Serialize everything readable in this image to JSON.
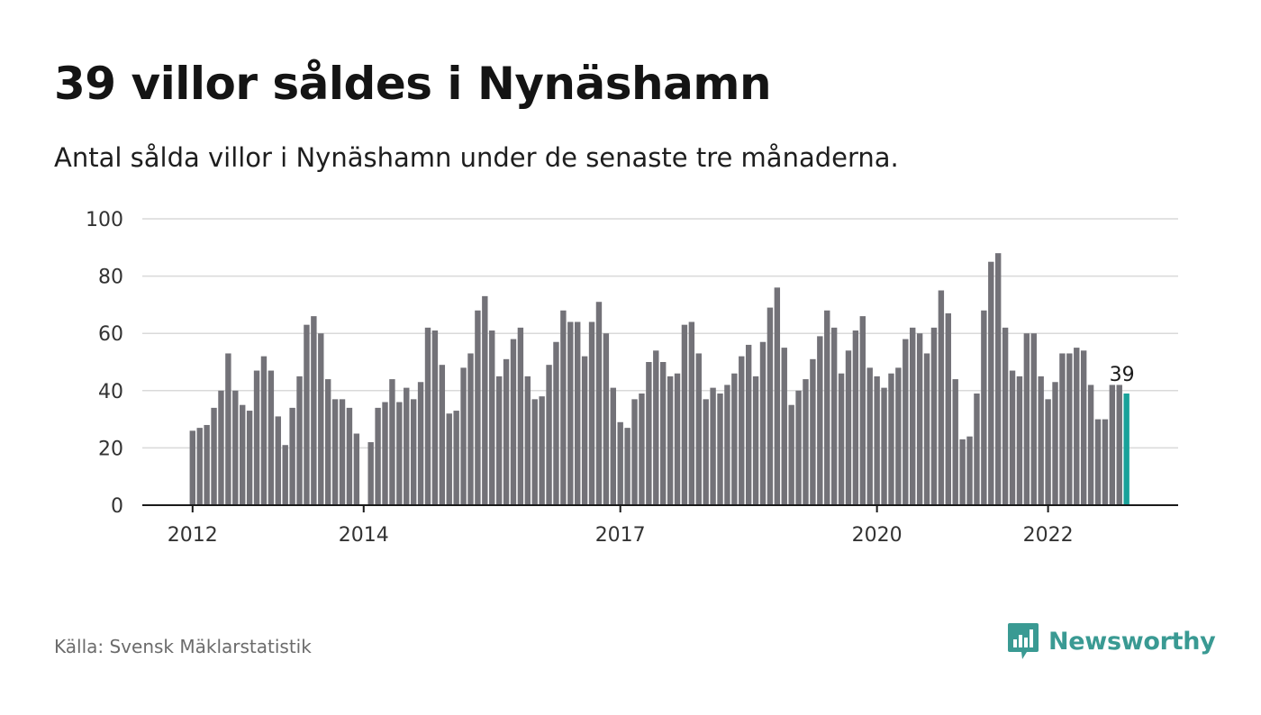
{
  "header": {
    "title": "39 villor såldes i Nynäshamn",
    "subtitle": "Antal sålda villor i Nynäshamn under de senaste tre månaderna."
  },
  "footer": {
    "source": "Källa: Svensk Mäklarstatistik",
    "brand": "Newsworthy",
    "brand_icon": "newsworthy-chat-bars-icon"
  },
  "colors": {
    "bar": "#737278",
    "highlight": "#1aa29a",
    "grid": "#d9d9d9",
    "axis": "#1a1a1a",
    "brand": "#3a9a93"
  },
  "chart_data": {
    "type": "bar",
    "ylim": [
      0,
      100
    ],
    "yticks": [
      0,
      20,
      40,
      60,
      80,
      100
    ],
    "xticks": [
      "2012",
      "2014",
      "2017",
      "2020",
      "2022"
    ],
    "grid": true,
    "start": "2012-01",
    "values": [
      26,
      27,
      28,
      34,
      40,
      53,
      40,
      35,
      33,
      47,
      52,
      47,
      31,
      21,
      34,
      45,
      63,
      66,
      60,
      44,
      37,
      37,
      34,
      25,
      0,
      22,
      34,
      36,
      44,
      36,
      41,
      37,
      43,
      62,
      61,
      49,
      32,
      33,
      48,
      53,
      68,
      73,
      61,
      45,
      51,
      58,
      62,
      45,
      37,
      38,
      49,
      57,
      68,
      64,
      64,
      52,
      64,
      71,
      60,
      41,
      29,
      27,
      37,
      39,
      50,
      54,
      50,
      45,
      46,
      63,
      64,
      53,
      37,
      41,
      39,
      42,
      46,
      52,
      56,
      45,
      57,
      69,
      76,
      55,
      35,
      40,
      44,
      51,
      59,
      68,
      62,
      46,
      54,
      61,
      66,
      48,
      45,
      41,
      46,
      48,
      58,
      62,
      60,
      53,
      62,
      75,
      67,
      44,
      23,
      24,
      39,
      68,
      85,
      88,
      62,
      47,
      45,
      60,
      60,
      45,
      37,
      43,
      53,
      53,
      55,
      54,
      42,
      30,
      30,
      42,
      42,
      39
    ],
    "highlight_label": "39"
  }
}
